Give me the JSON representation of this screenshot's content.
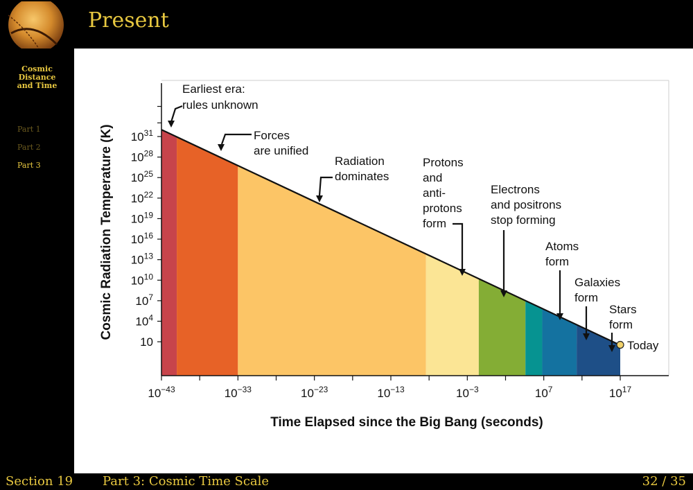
{
  "sidebar": {
    "title_lines": [
      "Cosmic",
      "Distance",
      "and Time"
    ],
    "parts": [
      {
        "label": "Part 1",
        "active": false
      },
      {
        "label": "Part 2",
        "active": false
      },
      {
        "label": "Part 3",
        "active": true
      }
    ]
  },
  "header": {
    "title": "Present"
  },
  "footer": {
    "section": "Section 19",
    "title": "Part 3:  Cosmic Time Scale",
    "page": "32 / 35"
  },
  "colors": {
    "theme_gold": "#e8c840",
    "background": "#000000"
  },
  "chart_data": {
    "type": "line",
    "xlabel": "Time Elapsed since the Big Bang (seconds)",
    "ylabel": "Cosmic Radiation Temperature (K)",
    "x_scale": "log",
    "y_scale": "log",
    "x_ticks": [
      {
        "exp": -43,
        "label": "10",
        "sup": "−43"
      },
      {
        "exp": -33,
        "label": "10",
        "sup": "−33"
      },
      {
        "exp": -23,
        "label": "10",
        "sup": "−23"
      },
      {
        "exp": -13,
        "label": "10",
        "sup": "−13"
      },
      {
        "exp": -3,
        "label": "10",
        "sup": "−3"
      },
      {
        "exp": 7,
        "label": "10",
        "sup": "7"
      },
      {
        "exp": 17,
        "label": "10",
        "sup": "17"
      }
    ],
    "y_ticks": [
      {
        "exp": 1,
        "label": "10",
        "sup": ""
      },
      {
        "exp": 4,
        "label": "10",
        "sup": "4"
      },
      {
        "exp": 7,
        "label": "10",
        "sup": "7"
      },
      {
        "exp": 10,
        "label": "10",
        "sup": "10"
      },
      {
        "exp": 13,
        "label": "10",
        "sup": "13"
      },
      {
        "exp": 16,
        "label": "10",
        "sup": "16"
      },
      {
        "exp": 19,
        "label": "10",
        "sup": "19"
      },
      {
        "exp": 22,
        "label": "10",
        "sup": "22"
      },
      {
        "exp": 25,
        "label": "10",
        "sup": "25"
      },
      {
        "exp": 28,
        "label": "10",
        "sup": "28"
      },
      {
        "exp": 31,
        "label": "10",
        "sup": "31"
      }
    ],
    "line": {
      "x_log_range": [
        -43,
        17
      ],
      "y_log_range": [
        32,
        0.5
      ]
    },
    "eras": [
      {
        "name": "earliest-era",
        "from": -43,
        "to": -41,
        "color": "#c7444b"
      },
      {
        "name": "forces-unified",
        "from": -41,
        "to": -33,
        "color": "#e76227"
      },
      {
        "name": "radiation-dominates",
        "from": -33,
        "to": -8.4,
        "color": "#fcc566"
      },
      {
        "name": "protons-form",
        "from": -8.4,
        "to": -1.5,
        "color": "#fbe595"
      },
      {
        "name": "electrons-positrons",
        "from": -1.5,
        "to": 4.6,
        "color": "#84ad35"
      },
      {
        "name": "atoms-form",
        "from": 4.6,
        "to": 6.8,
        "color": "#069391"
      },
      {
        "name": "galaxies-form",
        "from": 6.8,
        "to": 11.3,
        "color": "#1472a0"
      },
      {
        "name": "stars-form",
        "from": 11.3,
        "to": 17,
        "color": "#1e4f87"
      }
    ],
    "annotations": [
      {
        "lines": [
          "Earliest era:",
          "rules unknown"
        ],
        "x": -42.2
      },
      {
        "lines": [
          "Forces",
          "are unified"
        ],
        "x": -35.2
      },
      {
        "lines": [
          "Radiation",
          "dominates"
        ],
        "x": -23.3
      },
      {
        "lines": [
          "Protons",
          "and",
          "anti-",
          "protons",
          "form"
        ],
        "x": -2.2
      },
      {
        "lines": [
          "Electrons",
          "and positrons",
          "stop forming"
        ],
        "x": 2.6
      },
      {
        "lines": [
          "Atoms",
          "form"
        ],
        "x": 8.5
      },
      {
        "lines": [
          "Galaxies",
          "form"
        ],
        "x": 12.2
      },
      {
        "lines": [
          "Stars",
          "form"
        ],
        "x": 15.8
      },
      {
        "lines": [
          "Today"
        ],
        "x": 17
      }
    ]
  }
}
